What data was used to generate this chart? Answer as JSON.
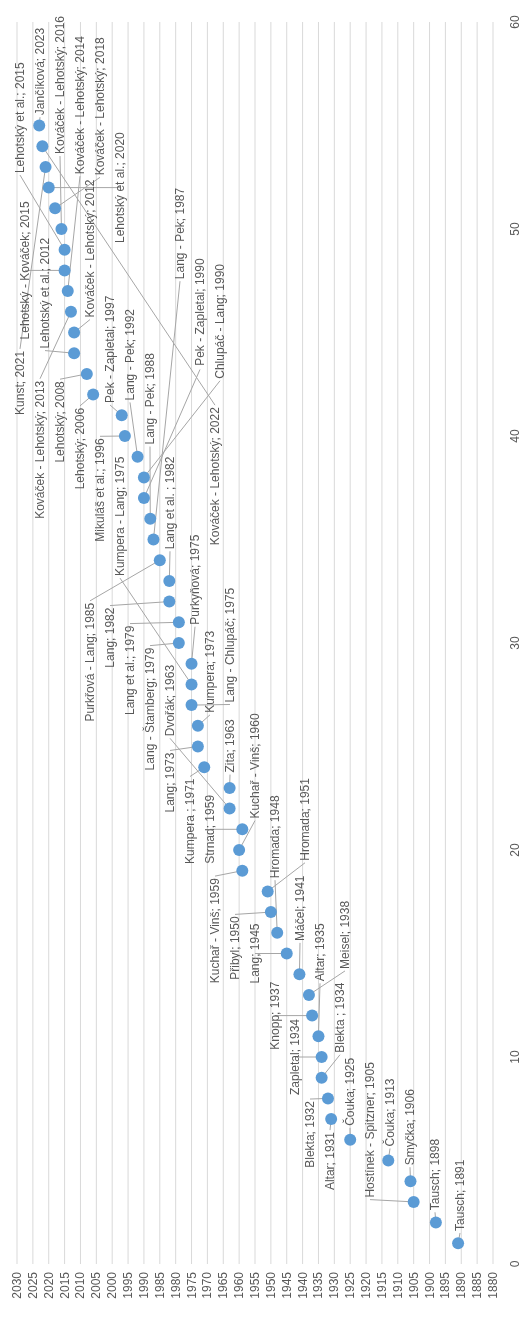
{
  "chart_data": {
    "type": "scatter",
    "color": "#5b9bd5",
    "marker": "circle",
    "grid": "x",
    "ylim": [
      0,
      60
    ],
    "yticks": [
      0,
      10,
      20,
      30,
      40,
      50,
      60
    ],
    "xlim": [
      2030,
      1880
    ],
    "xticks": [
      2030,
      2025,
      2020,
      2015,
      2010,
      2005,
      2000,
      1995,
      1990,
      1985,
      1980,
      1975,
      1970,
      1965,
      1960,
      1955,
      1950,
      1945,
      1940,
      1935,
      1930,
      1925,
      1920,
      1915,
      1910,
      1905,
      1900,
      1895,
      1890,
      1885,
      1880
    ],
    "x": [
      1891,
      1898,
      1905,
      1906,
      1913,
      1925,
      1931,
      1932,
      1934,
      1934,
      1935,
      1937,
      1938,
      1941,
      1945,
      1948,
      1950,
      1951,
      1959,
      1960,
      1959,
      1963,
      1963,
      1971,
      1973,
      1973,
      1975,
      1975,
      1975,
      1979,
      1979,
      1982,
      1982,
      1985,
      1987,
      1988,
      1990,
      1990,
      1992,
      1996,
      1997,
      2006,
      2008,
      2012,
      2012,
      2013,
      2014,
      2015,
      2015,
      2016,
      2018,
      2020,
      2021,
      2022,
      2023
    ],
    "values": [
      1,
      2,
      3,
      4,
      5,
      6,
      7,
      8,
      9,
      10,
      11,
      12,
      13,
      14,
      15,
      16,
      17,
      18,
      19,
      20,
      21,
      22,
      23,
      24,
      25,
      26,
      27,
      28,
      29,
      30,
      31,
      32,
      33,
      34,
      35,
      36,
      37,
      38,
      39,
      40,
      41,
      42,
      43,
      44,
      45,
      46,
      47,
      48,
      49,
      50,
      51,
      52,
      53,
      54,
      55
    ],
    "annotations": [
      {
        "text": "Tausch; 1891",
        "x": 1891,
        "y": 1
      },
      {
        "text": "Tausch; 1898",
        "x": 1898,
        "y": 2
      },
      {
        "text": "Hostínek - Spitzner; 1905",
        "x": 1905,
        "y": 3
      },
      {
        "text": "Smyčka; 1906",
        "x": 1906,
        "y": 4
      },
      {
        "text": "Čouka; 1913",
        "x": 1913,
        "y": 5
      },
      {
        "text": "Čouka; 1925",
        "x": 1925,
        "y": 6
      },
      {
        "text": "Altar; 1931",
        "x": 1931,
        "y": 7
      },
      {
        "text": "Blekta; 1932",
        "x": 1932,
        "y": 8
      },
      {
        "text": "Blekta ; 1934",
        "x": 1934,
        "y": 9
      },
      {
        "text": "Zapletal; 1934",
        "x": 1934,
        "y": 10
      },
      {
        "text": "Altar; 1935",
        "x": 1935,
        "y": 11
      },
      {
        "text": "Knopp; 1937",
        "x": 1937,
        "y": 12
      },
      {
        "text": "Meisel; 1938",
        "x": 1938,
        "y": 13
      },
      {
        "text": "Máčel; 1941",
        "x": 1941,
        "y": 14
      },
      {
        "text": "Lang; 1945",
        "x": 1945,
        "y": 15
      },
      {
        "text": "Hromada; 1948",
        "x": 1948,
        "y": 16
      },
      {
        "text": "Přibyl; 1950",
        "x": 1950,
        "y": 17
      },
      {
        "text": "Hromada; 1951",
        "x": 1951,
        "y": 18
      },
      {
        "text": "Kuchař - Vinš; 1959",
        "x": 1959,
        "y": 19
      },
      {
        "text": "Kuchař - Vinš; 1960",
        "x": 1960,
        "y": 20
      },
      {
        "text": "Strnad; 1959",
        "x": 1959,
        "y": 21
      },
      {
        "text": "Dvořák; 1963",
        "x": 1963,
        "y": 22
      },
      {
        "text": "Zita; 1963",
        "x": 1963,
        "y": 23
      },
      {
        "text": "Kumpera ; 1971",
        "x": 1971,
        "y": 24
      },
      {
        "text": "Lang; 1973",
        "x": 1973,
        "y": 25
      },
      {
        "text": "Kumpera; 1973",
        "x": 1973,
        "y": 26
      },
      {
        "text": "Lang - Chlupáč; 1975",
        "x": 1975,
        "y": 27
      },
      {
        "text": "Kumpera - Lang; 1975",
        "x": 1975,
        "y": 28
      },
      {
        "text": "Purkyňová; 1975",
        "x": 1975,
        "y": 29
      },
      {
        "text": "Lang - Štamberg; 1979",
        "x": 1979,
        "y": 30
      },
      {
        "text": "Lang et al.; 1979",
        "x": 1979,
        "y": 31
      },
      {
        "text": "Lang; 1982",
        "x": 1982,
        "y": 32
      },
      {
        "text": "Lang et al. ; 1982",
        "x": 1982,
        "y": 33
      },
      {
        "text": "Purkřová - Lang; 1985",
        "x": 1985,
        "y": 34
      },
      {
        "text": "Lang - Pek; 1987",
        "x": 1987,
        "y": 35
      },
      {
        "text": "Lang - Pek; 1988",
        "x": 1988,
        "y": 36
      },
      {
        "text": "Pek  - Zapletal; 1990",
        "x": 1990,
        "y": 37
      },
      {
        "text": "Chlupáč - Lang; 1990",
        "x": 1990,
        "y": 38
      },
      {
        "text": "Lang - Pek; 1992",
        "x": 1992,
        "y": 39
      },
      {
        "text": "Mikuláš et al.; 1996",
        "x": 1996,
        "y": 40
      },
      {
        "text": "Pek - Zapletal; 1997",
        "x": 1997,
        "y": 41
      },
      {
        "text": "Lehotský; 2006",
        "x": 2006,
        "y": 42
      },
      {
        "text": "Lehotský; 2008",
        "x": 2008,
        "y": 43
      },
      {
        "text": "Lehotský et al.; 2012",
        "x": 2012,
        "y": 44
      },
      {
        "text": "Kováček - Lehotský; 2012",
        "x": 2012,
        "y": 45
      },
      {
        "text": "Kováček - Lehotský; 2013",
        "x": 2013,
        "y": 46
      },
      {
        "text": "Kováček - Lehotský; 2014",
        "x": 2014,
        "y": 47
      },
      {
        "text": "Lehotský  - Kováček; 2015",
        "x": 2015,
        "y": 48
      },
      {
        "text": "Lehotský et al.; 2015",
        "x": 2015,
        "y": 49
      },
      {
        "text": "Kováček - Lehotský; 2016",
        "x": 2016,
        "y": 50
      },
      {
        "text": "Kováček - Lehotský; 2018",
        "x": 2018,
        "y": 51
      },
      {
        "text": "Lehotský et al.; 2020",
        "x": 2020,
        "y": 52
      },
      {
        "text": "Kunst; 2021",
        "x": 2021,
        "y": 53
      },
      {
        "text": "Kováček - Lehotský; 2022",
        "x": 2022,
        "y": 54
      },
      {
        "text": "Jančíková; 2023",
        "x": 2023,
        "y": 55
      }
    ]
  }
}
